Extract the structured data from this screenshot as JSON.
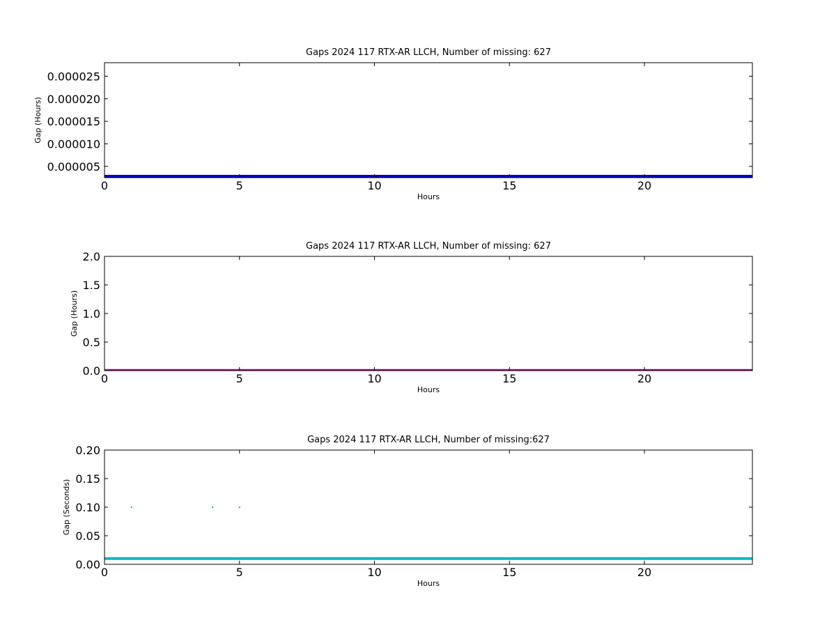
{
  "chart_data": [
    {
      "type": "scatter",
      "title": "Gaps 2024 117 RTX-AR  LLCH, Number of missing: 627",
      "xlabel": "Hours",
      "ylabel": "Gap (Hours)",
      "xlim": [
        0,
        24
      ],
      "ylim": [
        2.5e-06,
        2.8e-05
      ],
      "xticks": [
        0,
        5,
        10,
        15,
        20
      ],
      "xtick_labels": [
        "0",
        "5",
        "10",
        "15",
        "20"
      ],
      "yticks": [
        5e-06,
        1e-05,
        1.5e-05,
        2e-05,
        2.5e-05
      ],
      "ytick_labels": [
        "0.000005",
        "0.000010",
        "0.000015",
        "0.000020",
        "0.000025"
      ],
      "grid": false,
      "series": [
        {
          "color": "#0000cc",
          "x": [
            0,
            24
          ],
          "y": [
            2.8e-06,
            2.8e-06
          ],
          "style": "dense-band"
        }
      ]
    },
    {
      "type": "scatter",
      "title": "Gaps 2024 117 RTX-AR  LLCH, Number of missing: 627",
      "xlabel": "Hours",
      "ylabel": "Gap (Hours)",
      "xlim": [
        0,
        24
      ],
      "ylim": [
        0,
        2.0
      ],
      "xticks": [
        0,
        5,
        10,
        15,
        20
      ],
      "xtick_labels": [
        "0",
        "5",
        "10",
        "15",
        "20"
      ],
      "yticks": [
        0.0,
        0.5,
        1.0,
        1.5,
        2.0
      ],
      "ytick_labels": [
        "0.0",
        "0.5",
        "1.0",
        "1.5",
        "2.0"
      ],
      "grid": false,
      "series": [
        {
          "color": "#aa00aa",
          "x": [
            0,
            24
          ],
          "y": [
            0.003,
            0.003
          ],
          "style": "dense-band"
        }
      ]
    },
    {
      "type": "scatter",
      "title": "Gaps 2024 117 RTX-AR  LLCH, Number of missing:627",
      "xlabel": "Hours",
      "ylabel": "Gap (Seconds)",
      "xlim": [
        0,
        24
      ],
      "ylim": [
        0,
        0.2
      ],
      "xticks": [
        0,
        5,
        10,
        15,
        20
      ],
      "xtick_labels": [
        "0",
        "5",
        "10",
        "15",
        "20"
      ],
      "yticks": [
        0.0,
        0.05,
        0.1,
        0.15,
        0.2
      ],
      "ytick_labels": [
        "0.00",
        "0.05",
        "0.10",
        "0.15",
        "0.20"
      ],
      "grid": false,
      "series": [
        {
          "color": "#00bbbb",
          "x": [
            0,
            24
          ],
          "y": [
            0.01,
            0.01
          ],
          "style": "dense-band"
        },
        {
          "color": "#00bbbb",
          "x": [
            1,
            4,
            5
          ],
          "y": [
            0.1,
            0.1,
            0.1
          ],
          "style": "points"
        }
      ]
    }
  ]
}
